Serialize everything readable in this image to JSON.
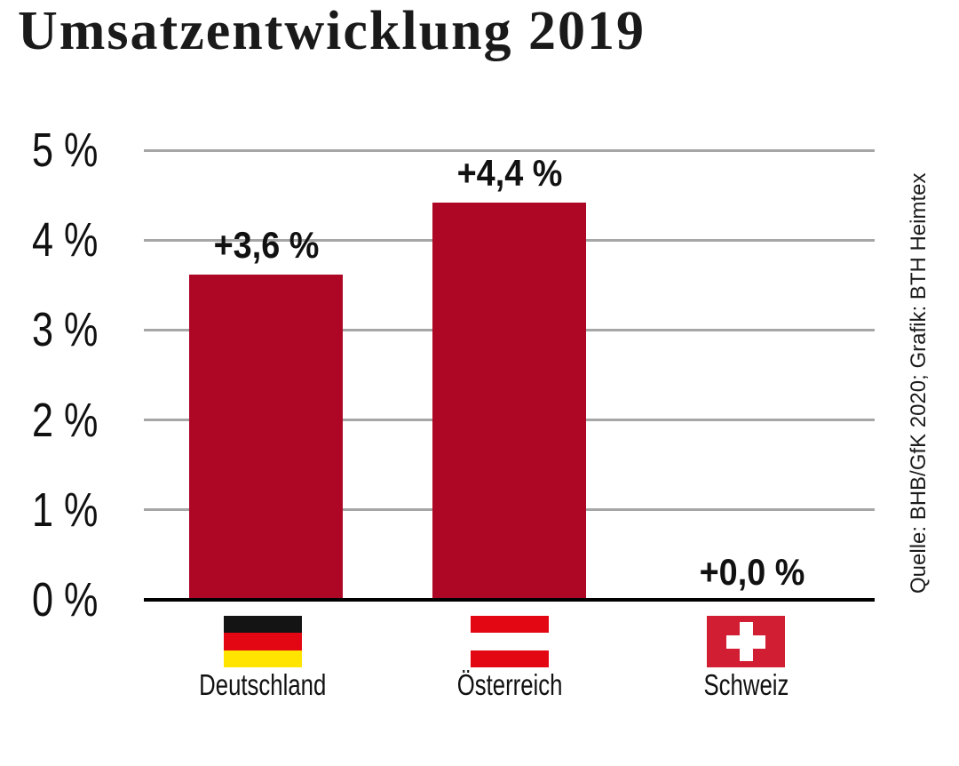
{
  "title": "Umsatzentwicklung 2019",
  "source": "Quelle: BHB/GfK 2020; Grafik: BTH Heimtex",
  "chart_data": {
    "type": "bar",
    "title": "Umsatzentwicklung 2019",
    "categories": [
      "Deutschland",
      "Österreich",
      "Schweiz"
    ],
    "values": [
      3.6,
      4.4,
      0.0
    ],
    "value_labels": [
      "+3,6 %",
      "+4,4 %",
      "+0,0 %"
    ],
    "xlabel": "",
    "ylabel": "",
    "ylim": [
      0,
      5
    ],
    "yticks": [
      {
        "value": 5,
        "label": "5 %"
      },
      {
        "value": 4,
        "label": "4 %"
      },
      {
        "value": 3,
        "label": "3 %"
      },
      {
        "value": 2,
        "label": "2 %"
      },
      {
        "value": 1,
        "label": "1 %"
      },
      {
        "value": 0,
        "label": "0 %"
      }
    ],
    "grid": true,
    "legend": "none",
    "bar_color": "#ae0726",
    "flag_icons": [
      "germany-flag",
      "austria-flag",
      "switzerland-flag"
    ]
  },
  "colors": {
    "bar": "#ae0726",
    "gridline": "#a6a6a6",
    "axis": "#000000",
    "text": "#111111",
    "flag_germany": [
      "#141414",
      "#e30613",
      "#ffe400"
    ],
    "flag_austria": [
      "#e30613",
      "#ffffff",
      "#e30613"
    ],
    "flag_switzerland_field": "#d21e32",
    "flag_switzerland_cross": "#ffffff"
  }
}
